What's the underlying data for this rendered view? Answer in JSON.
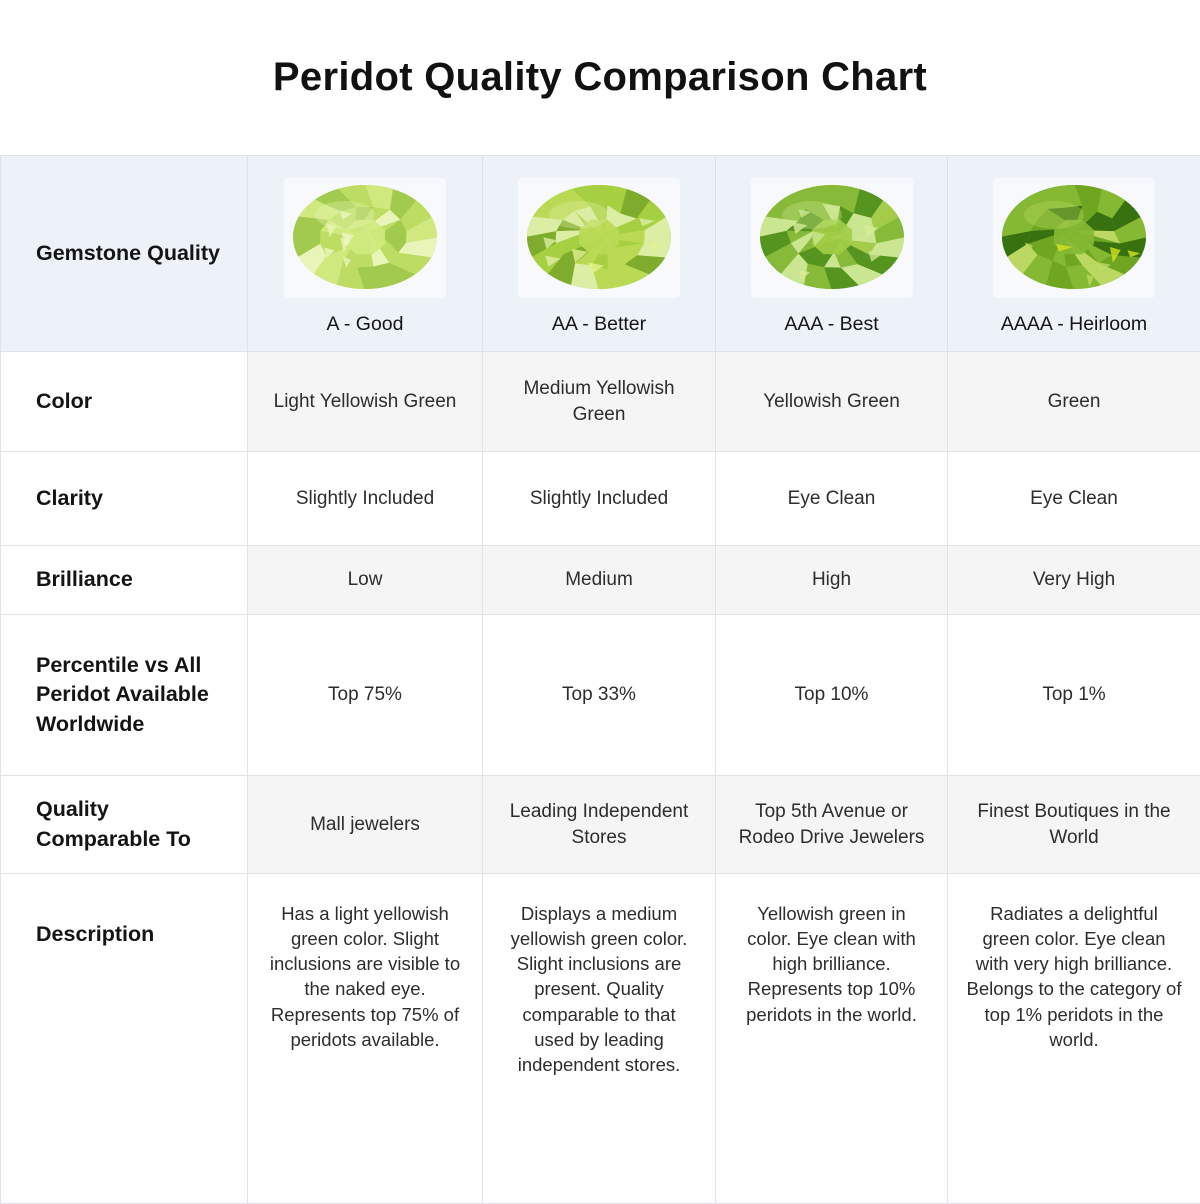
{
  "title": "Peridot Quality Comparison Chart",
  "chart_data": {
    "type": "table",
    "title": "Peridot Quality Comparison Chart",
    "row_labels": {
      "quality": "Gemstone Quality",
      "color": "Color",
      "clarity": "Clarity",
      "brilliance": "Brilliance",
      "percentile": "Percentile vs All Peridot Available Worldwide",
      "comparable": "Quality Comparable To",
      "description": "Description"
    },
    "grades": [
      {
        "grade": "A - Good",
        "gem_icon": "peridot-oval-light",
        "color": "Light Yellowish Green",
        "clarity": "Slightly Included",
        "brilliance": "Low",
        "percentile": "Top 75%",
        "comparable": "Mall jewelers",
        "description": "Has a light yellowish green color. Slight inclusions are visible to the naked eye. Represents top 75% of peridots available.",
        "gem_colors": {
          "base": "#cfe97e",
          "light": "#e9f5b8",
          "mid": "#bcdc62",
          "dark": "#a2ca4e",
          "glint": "#eef7c6"
        }
      },
      {
        "grade": "AA - Better",
        "gem_icon": "peridot-oval-medium",
        "color": "Medium Yellowish Green",
        "clarity": "Slightly Included",
        "brilliance": "Medium",
        "percentile": "Top 33%",
        "comparable": "Leading Independent Stores",
        "description": "Displays a medium yellowish green color. Slight inclusions are present. Quality comparable to that used by leading independent stores.",
        "gem_colors": {
          "base": "#bada55",
          "light": "#dcedA4",
          "mid": "#a6cf41",
          "dark": "#7fac2d",
          "glint": "#e3f18f"
        }
      },
      {
        "grade": "AAA - Best",
        "gem_icon": "peridot-oval-best",
        "color": "Yellowish Green",
        "clarity": "Eye Clean",
        "brilliance": "High",
        "percentile": "Top 10%",
        "comparable": "Top 5th Avenue or Rodeo Drive Jewelers",
        "description": "Yellowish green in color. Eye clean with high brilliance. Represents top 10% peridots in the world.",
        "gem_colors": {
          "base": "#a3cd48",
          "light": "#cbe690",
          "mid": "#87ba38",
          "dark": "#55941e",
          "glint": "#d8ec9a"
        }
      },
      {
        "grade": "AAAA - Heirloom",
        "gem_icon": "peridot-oval-heirloom",
        "color": "Green",
        "clarity": "Eye Clean",
        "brilliance": "Very High",
        "percentile": "Top 1%",
        "comparable": "Finest Boutiques in the World",
        "description": "Radiates a delightful green color. Eye clean with very high brilliance. Belongs to the category of top 1% peridots in the world.",
        "gem_colors": {
          "base": "#85b933",
          "light": "#bbd962",
          "mid": "#6ea621",
          "dark": "#38710f",
          "glint": "#d3e21f"
        }
      }
    ],
    "theme": {
      "header_row_bg": "#edf2f9",
      "striped_cell_bg": "#f5f5f5",
      "grid_line": "#e1e3e6",
      "title_color": "#111111",
      "body_text_color": "#2d2d2d"
    }
  }
}
